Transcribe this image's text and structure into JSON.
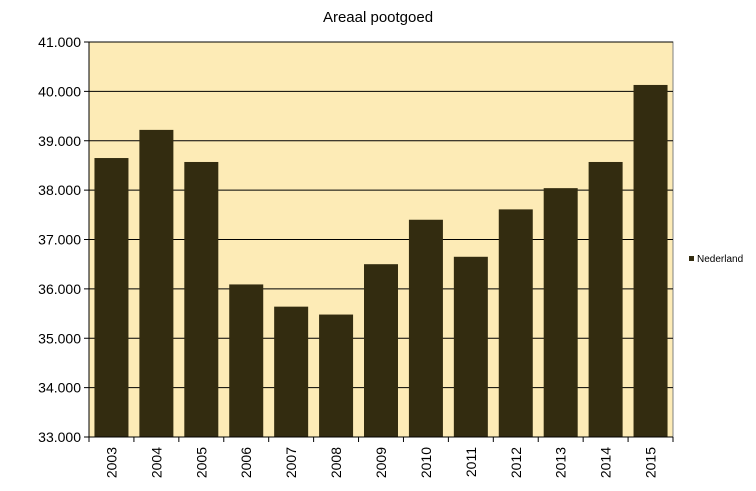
{
  "chart_data": {
    "type": "bar",
    "title": "Areaal pootgoed",
    "xlabel": "",
    "ylabel": "",
    "categories": [
      "2003",
      "2004",
      "2005",
      "2006",
      "2007",
      "2008",
      "2009",
      "2010",
      "2011",
      "2012",
      "2013",
      "2014",
      "2015"
    ],
    "series": [
      {
        "name": "Nederland",
        "values": [
          38650,
          39220,
          38570,
          36090,
          35640,
          35480,
          36500,
          37400,
          36650,
          37610,
          38040,
          38570,
          40130
        ]
      }
    ],
    "ylim": [
      33000,
      41000
    ],
    "yticks": [
      {
        "value": 33000,
        "label": "33.000"
      },
      {
        "value": 34000,
        "label": "34.000"
      },
      {
        "value": 35000,
        "label": "35.000"
      },
      {
        "value": 36000,
        "label": "36.000"
      },
      {
        "value": 37000,
        "label": "37.000"
      },
      {
        "value": 38000,
        "label": "38.000"
      },
      {
        "value": 39000,
        "label": "39.000"
      },
      {
        "value": 40000,
        "label": "40.000"
      },
      {
        "value": 41000,
        "label": "41.000"
      }
    ],
    "grid": true,
    "legend_position": "right",
    "colors": {
      "bar": "#332c10",
      "plot_background": "#fdebb6",
      "gridline": "#000000"
    }
  }
}
